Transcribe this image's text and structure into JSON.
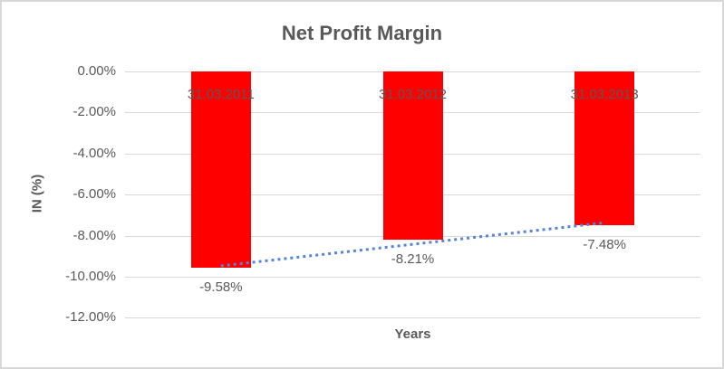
{
  "chart": {
    "title": "Net Profit Margin",
    "y_axis_title": "IN (%)",
    "x_axis_title": "Years"
  },
  "chart_data": {
    "type": "bar",
    "title": "Net Profit Margin",
    "xlabel": "Years",
    "ylabel": "IN (%)",
    "categories": [
      "31.03.2011",
      "31.03.2012",
      "31.03.2013"
    ],
    "values": [
      -9.58,
      -8.21,
      -7.48
    ],
    "data_labels": [
      "-9.58%",
      "-8.21%",
      "-7.48%"
    ],
    "y_ticks": [
      "0.00%",
      "-2.00%",
      "-4.00%",
      "-6.00%",
      "-8.00%",
      "-10.00%",
      "-12.00%"
    ],
    "y_tick_values": [
      0,
      -2,
      -4,
      -6,
      -8,
      -10,
      -12
    ],
    "ylim": [
      -12,
      0
    ],
    "grid": true,
    "legend": "none",
    "bar_color": "#ff0000",
    "gridline_color": "#d9d9d9",
    "text_color": "#595959",
    "trendline": {
      "type": "linear",
      "style": "dotted",
      "color": "#5585d6",
      "start_value": -9.47,
      "end_value": -7.37
    }
  }
}
